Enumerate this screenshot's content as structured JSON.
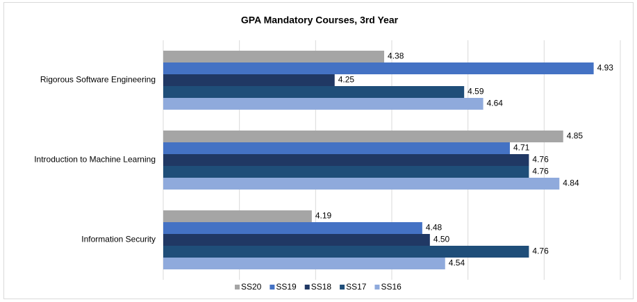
{
  "chart_data": {
    "type": "hbar",
    "title": "GPA Mandatory Courses, 3rd Year",
    "categories": [
      "Rigorous Software Engineering",
      "Introduction to Machine Learning",
      "Information Security"
    ],
    "series": [
      {
        "name": "SS20",
        "color": "#a5a5a5",
        "values": [
          4.38,
          4.85,
          4.19
        ],
        "value_labels": [
          "4.38",
          "4.85",
          "4.19"
        ]
      },
      {
        "name": "SS19",
        "color": "#4472c4",
        "values": [
          4.93,
          4.71,
          4.48
        ],
        "value_labels": [
          "4.93",
          "4.71",
          "4.48"
        ]
      },
      {
        "name": "SS18",
        "color": "#203864",
        "values": [
          4.25,
          4.76,
          4.5
        ],
        "value_labels": [
          "4.25",
          "4.76",
          "4.50"
        ]
      },
      {
        "name": "SS17",
        "color": "#1f4e79",
        "values": [
          4.59,
          4.76,
          4.76
        ],
        "value_labels": [
          "4.59",
          "4.76",
          "4.76"
        ]
      },
      {
        "name": "SS16",
        "color": "#8faadc",
        "values": [
          4.64,
          4.84,
          4.54
        ],
        "value_labels": [
          "4.64",
          "4.84",
          "4.54"
        ]
      }
    ],
    "xlim": [
      3.8,
      5.0
    ],
    "xticks": [
      3.8,
      4.0,
      4.2,
      4.4,
      4.6,
      4.8,
      5.0
    ],
    "grid": true
  }
}
